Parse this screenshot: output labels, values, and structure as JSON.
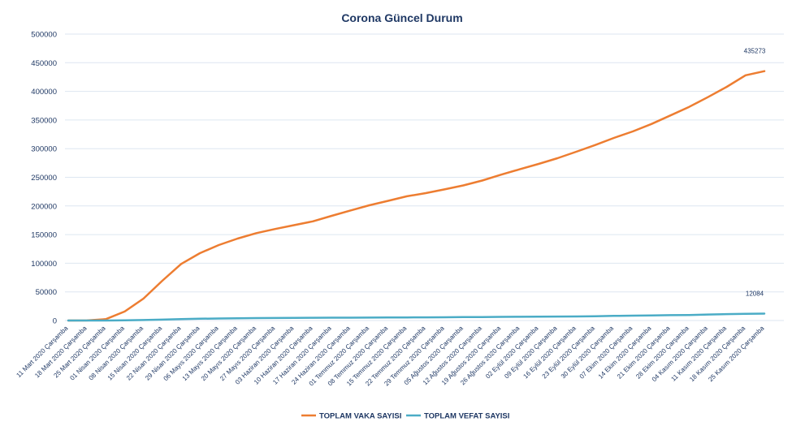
{
  "chart_data": {
    "type": "line",
    "title": "Corona Güncel Durum",
    "xlabel": "",
    "ylabel": "",
    "ylim": [
      0,
      500000
    ],
    "yticks": [
      0,
      50000,
      100000,
      150000,
      200000,
      250000,
      300000,
      350000,
      400000,
      450000,
      500000
    ],
    "grid": true,
    "legend_position": "bottom",
    "categories": [
      "11 Mart 2020 Çarşamba",
      "18 Mart 2020 Çarşamba",
      "25 Mart 2020 Çarşamba",
      "01 Nisan 2020 Çarşamba",
      "08 Nisan 2020 Çarşamba",
      "15 Nisan 2020 Çarşamba",
      "22 Nisan 2020 Çarşamba",
      "29 Nisan 2020 Çarşamba",
      "06 Mayıs 2020 Çarşamba",
      "13 Mayıs 2020 Çarşamba",
      "20 Mayıs 2020 Çarşamba",
      "27 Mayıs 2020 Çarşamba",
      "03 Haziran 2020 Çarşamba",
      "10 Haziran 2020 Çarşamba",
      "17 Haziran 2020 Çarşamba",
      "24 Haziran 2020 Çarşamba",
      "01 Temmuz 2020 Çarşamba",
      "08 Temmuz 2020 Çarşamba",
      "15 Temmuz 2020 Çarşamba",
      "22 Temmuz 2020 Çarşamba",
      "29 Temmuz 2020 Çarşamba",
      "05 Ağustos 2020 Çarşamba",
      "12 Ağustos 2020 Çarşamba",
      "19 Ağustos 2020 Çarşamba",
      "26 Ağustos 2020 Çarşamba",
      "02 Eylül 2020 Çarşamba",
      "09 Eylül 2020 Çarşamba",
      "16 Eylül 2020 Çarşamba",
      "23 Eylül 2020 Çarşamba",
      "30 Eylül 2020 Çarşamba",
      "07 Ekim 2020 Çarşamba",
      "14 Ekim 2020 Çarşamba",
      "21 Ekim 2020 Çarşamba",
      "28 Ekim 2020 Çarşamba",
      "04 Kasım 2020 Çarşamba",
      "11 Kasım 2020 Çarşamba",
      "18 Kasım 2020 Çarşamba",
      "25 Kasım 2020 Çarşamba"
    ],
    "series": [
      {
        "name": "TOPLAM VAKA SAYISI",
        "color": "#ed7d31",
        "values": [
          1,
          191,
          2433,
          15679,
          38226,
          69392,
          98674,
          117589,
          131744,
          143114,
          152587,
          159797,
          166422,
          173036,
          182727,
          192115,
          201098,
          208938,
          216873,
          222402,
          228924,
          235783,
          244392,
          254520,
          263998,
          273301,
          283270,
          294620,
          306302,
          318663,
          330000,
          343000,
          358000,
          373000,
          390000,
          408000,
          428000,
          435273
        ],
        "end_label": "435273"
      },
      {
        "name": "TOPLAM VEFAT SAYISI",
        "color": "#4bacc6",
        "values": [
          0,
          2,
          59,
          356,
          812,
          1518,
          2376,
          3174,
          3584,
          3952,
          4222,
          4431,
          4609,
          4763,
          4905,
          5025,
          5131,
          5260,
          5402,
          5563,
          5729,
          5912,
          6121,
          6326,
          6511,
          6673,
          6895,
          7119,
          7506,
          8003,
          8513,
          8900,
          9300,
          9700,
          10500,
          11200,
          11800,
          12084
        ],
        "end_label": "12084"
      }
    ]
  }
}
